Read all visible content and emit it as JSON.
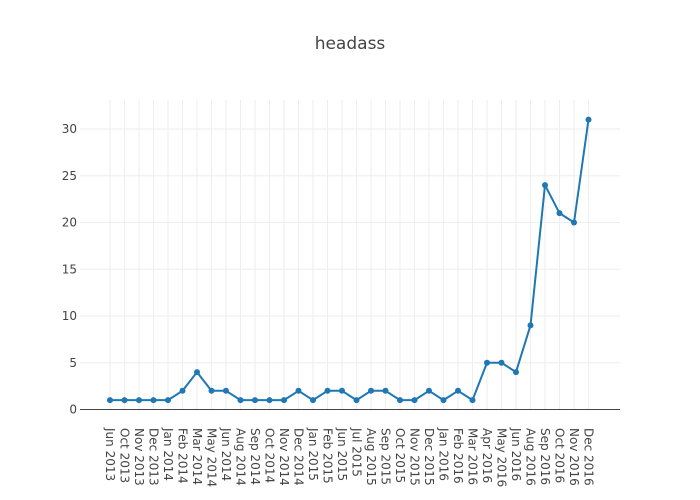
{
  "chart_data": {
    "type": "line",
    "title": "headass",
    "xlabel": "",
    "ylabel": "",
    "x": [
      "Jun 2013",
      "Oct 2013",
      "Nov 2013",
      "Dec 2013",
      "Jan 2014",
      "Feb 2014",
      "Mar 2014",
      "May 2014",
      "Jun 2014",
      "Aug 2014",
      "Sep 2014",
      "Oct 2014",
      "Nov 2014",
      "Dec 2014",
      "Jan 2015",
      "Feb 2015",
      "Jun 2015",
      "Jul 2015",
      "Aug 2015",
      "Sep 2015",
      "Oct 2015",
      "Nov 2015",
      "Dec 2015",
      "Jan 2016",
      "Feb 2016",
      "Mar 2016",
      "Apr 2016",
      "May 2016",
      "Jun 2016",
      "Aug 2016",
      "Sep 2016",
      "Oct 2016",
      "Nov 2016",
      "Dec 2016"
    ],
    "series": [
      {
        "values": [
          1,
          1,
          1,
          1,
          1,
          2,
          4,
          2,
          2,
          1,
          1,
          1,
          1,
          2,
          1,
          2,
          2,
          1,
          2,
          2,
          1,
          1,
          2,
          1,
          2,
          1,
          5,
          5,
          4,
          9,
          24,
          21,
          20,
          31
        ],
        "color": "#1f77b4"
      }
    ],
    "yticks": [
      0,
      5,
      10,
      15,
      20,
      25,
      30
    ],
    "ylim": [
      0,
      33
    ],
    "grid": true,
    "legend": "none"
  }
}
